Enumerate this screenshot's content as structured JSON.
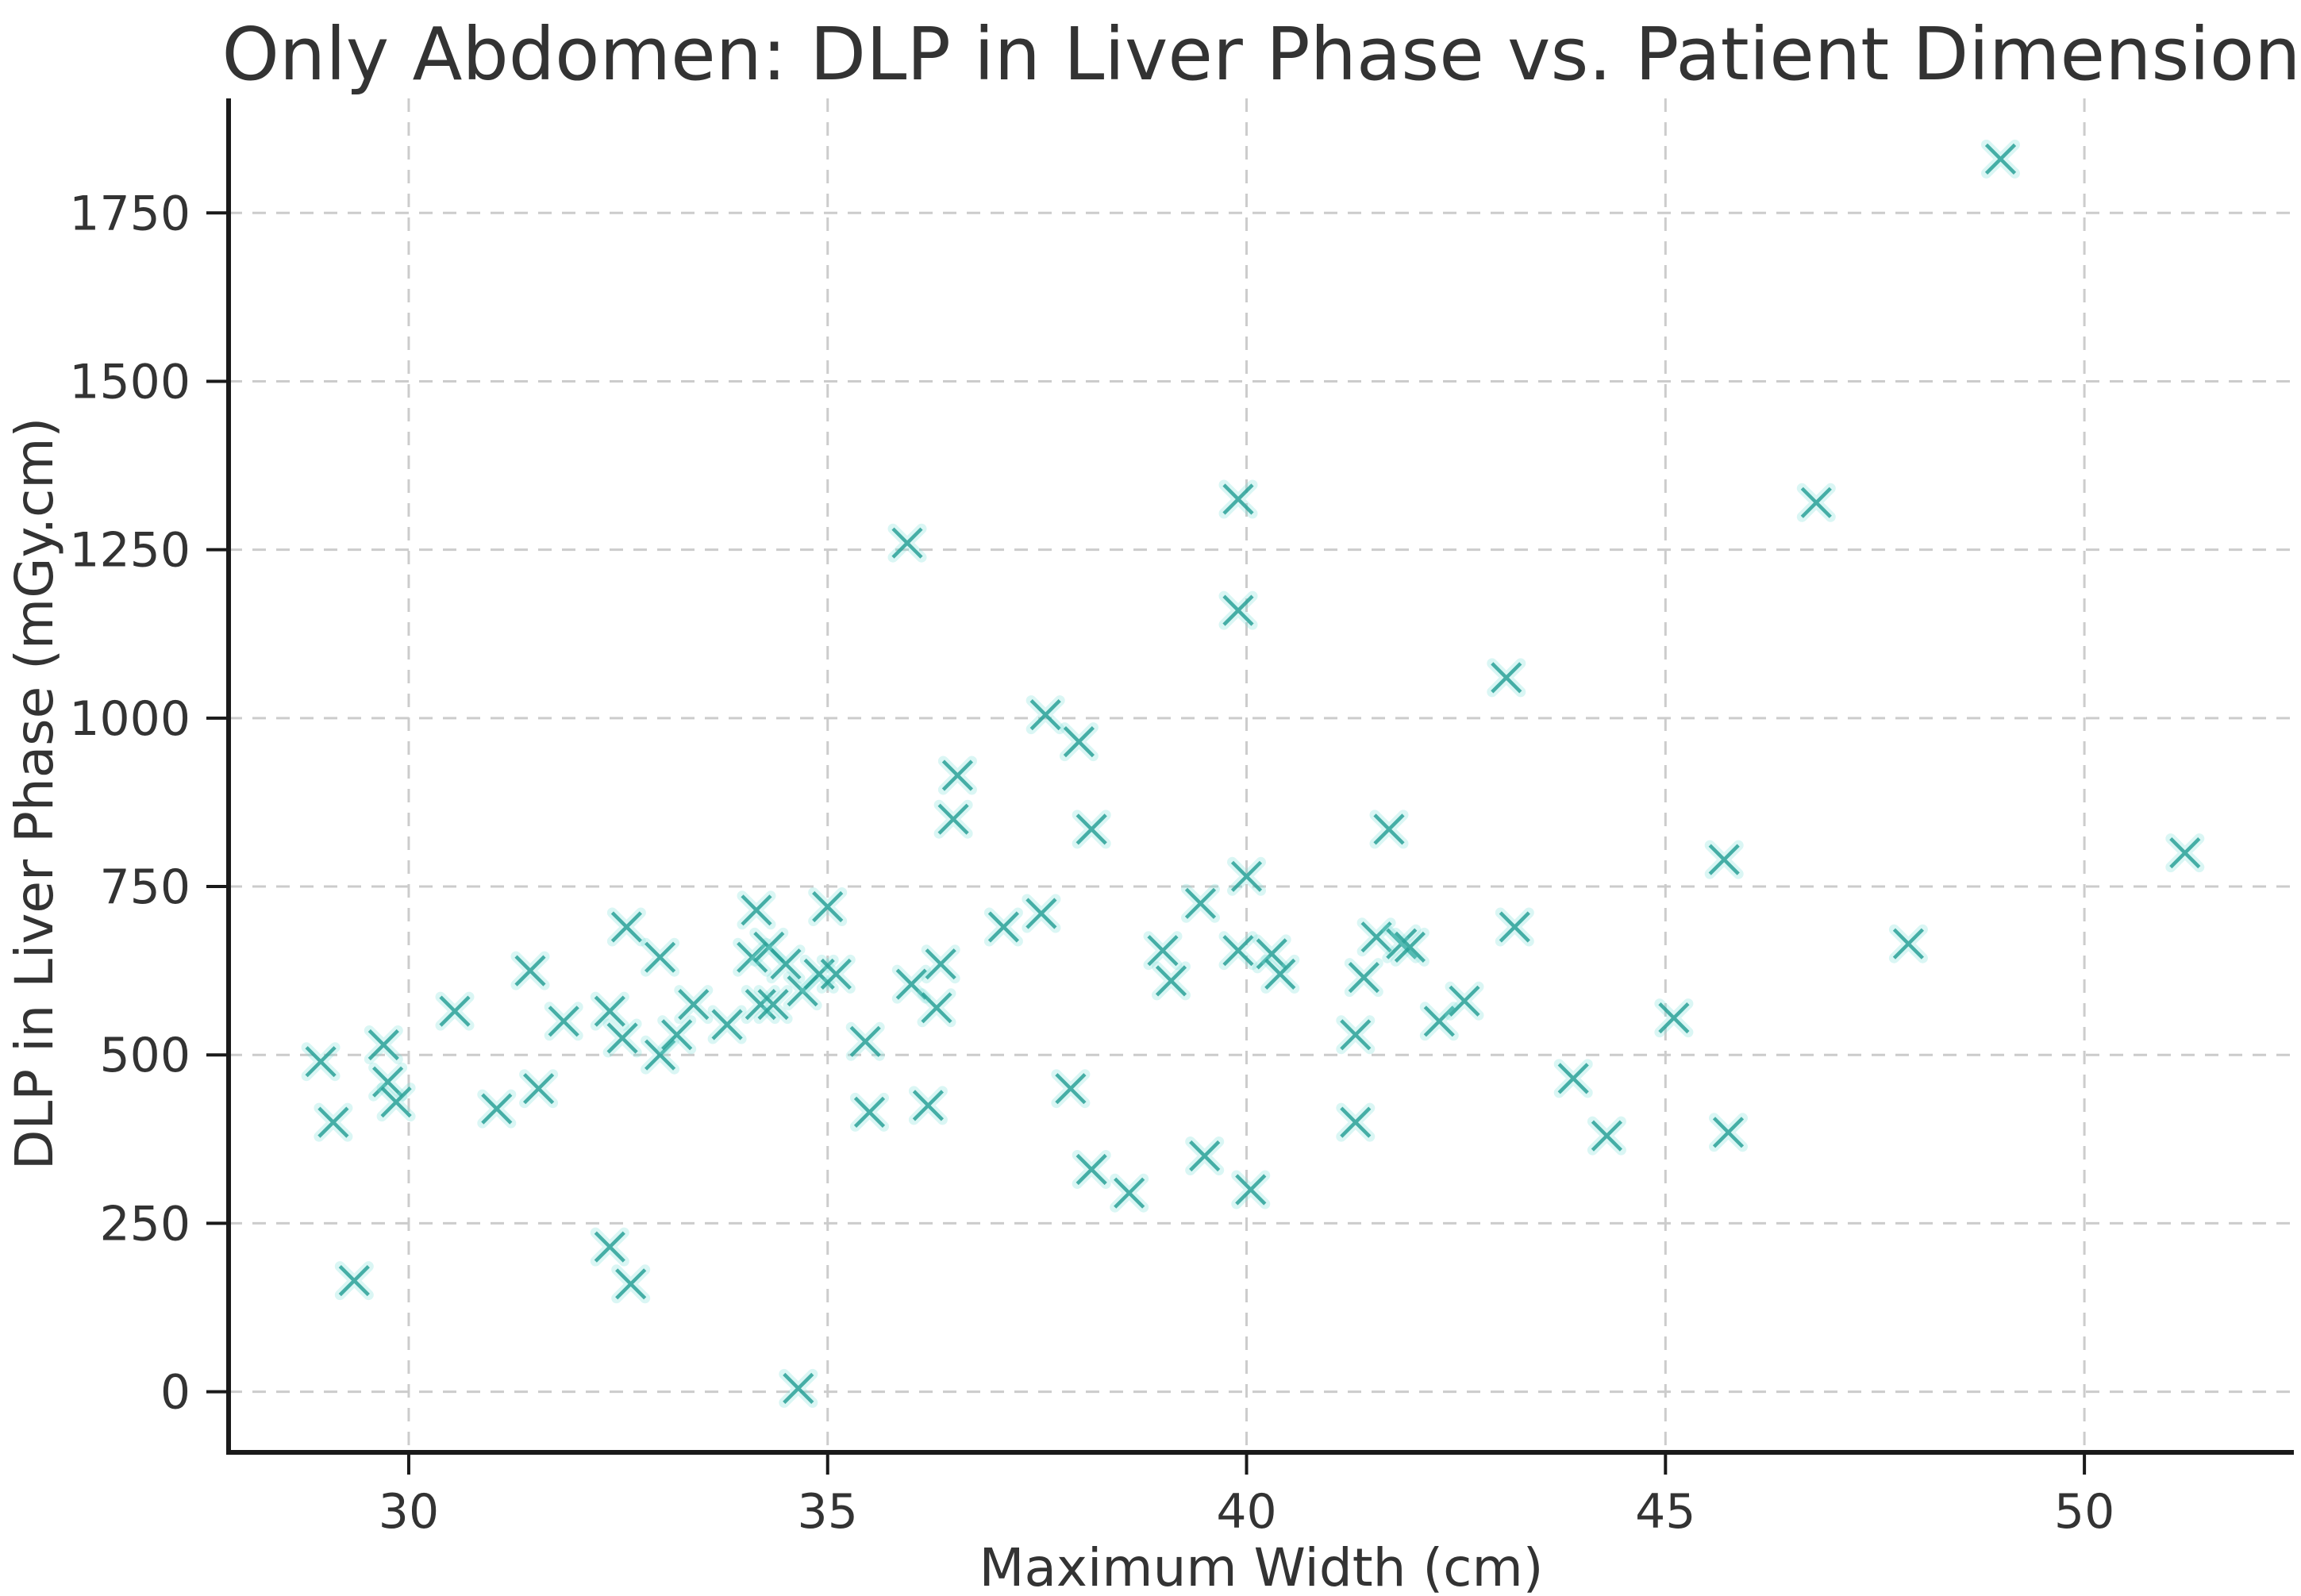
{
  "figure": {
    "background": "#ffffff",
    "text_color": "#333333",
    "grid_color": "#cccccc",
    "spine_color": "#1a1a1a"
  },
  "chart_data": {
    "type": "scatter",
    "title": "Only Abdomen: DLP in Liver Phase vs. Patient Dimension",
    "xlabel": "Maximum Width (cm)",
    "ylabel": "DLP in Liver Phase (mGy.cm)",
    "x_ticks": [
      30,
      35,
      40,
      45,
      50
    ],
    "y_ticks": [
      0,
      250,
      500,
      750,
      1000,
      1250,
      1500,
      1750
    ],
    "xlim": [
      27.85,
      52.5
    ],
    "ylim": [
      -90,
      1920
    ],
    "grid": true,
    "legend": "none",
    "marker": "x",
    "marker_color": "#2aa198",
    "marker_halo_color": "#7adfd6",
    "points": [
      [
        28.95,
        490
      ],
      [
        29.1,
        400
      ],
      [
        29.35,
        165
      ],
      [
        29.7,
        515
      ],
      [
        29.75,
        460
      ],
      [
        29.85,
        430
      ],
      [
        30.55,
        565
      ],
      [
        31.05,
        420
      ],
      [
        31.45,
        625
      ],
      [
        31.55,
        450
      ],
      [
        31.85,
        550
      ],
      [
        32.4,
        215
      ],
      [
        32.4,
        565
      ],
      [
        32.55,
        525
      ],
      [
        32.6,
        690
      ],
      [
        32.65,
        160
      ],
      [
        33.0,
        645
      ],
      [
        33.0,
        500
      ],
      [
        33.2,
        530
      ],
      [
        33.4,
        575
      ],
      [
        33.8,
        545
      ],
      [
        34.1,
        645
      ],
      [
        34.15,
        715
      ],
      [
        34.2,
        575
      ],
      [
        34.3,
        660
      ],
      [
        34.35,
        575
      ],
      [
        34.5,
        635
      ],
      [
        34.65,
        5
      ],
      [
        34.7,
        595
      ],
      [
        34.9,
        620
      ],
      [
        35.0,
        720
      ],
      [
        35.1,
        620
      ],
      [
        35.45,
        520
      ],
      [
        35.5,
        415
      ],
      [
        35.95,
        1260
      ],
      [
        36.0,
        605
      ],
      [
        36.2,
        425
      ],
      [
        36.3,
        570
      ],
      [
        36.35,
        635
      ],
      [
        36.5,
        850
      ],
      [
        36.55,
        915
      ],
      [
        37.1,
        690
      ],
      [
        37.55,
        710
      ],
      [
        37.6,
        1005
      ],
      [
        37.9,
        450
      ],
      [
        38.0,
        965
      ],
      [
        38.15,
        835
      ],
      [
        38.15,
        330
      ],
      [
        38.6,
        295
      ],
      [
        39.0,
        655
      ],
      [
        39.1,
        610
      ],
      [
        39.45,
        725
      ],
      [
        39.5,
        350
      ],
      [
        39.9,
        1325
      ],
      [
        39.9,
        1160
      ],
      [
        39.9,
        655
      ],
      [
        40.0,
        765
      ],
      [
        40.05,
        300
      ],
      [
        40.3,
        650
      ],
      [
        40.4,
        620
      ],
      [
        41.3,
        530
      ],
      [
        41.3,
        400
      ],
      [
        41.4,
        615
      ],
      [
        41.55,
        675
      ],
      [
        41.7,
        835
      ],
      [
        41.85,
        665
      ],
      [
        41.95,
        660
      ],
      [
        42.3,
        550
      ],
      [
        42.6,
        580
      ],
      [
        43.1,
        1060
      ],
      [
        43.2,
        690
      ],
      [
        43.9,
        465
      ],
      [
        44.3,
        380
      ],
      [
        45.1,
        555
      ],
      [
        45.7,
        790
      ],
      [
        45.75,
        385
      ],
      [
        46.8,
        1320
      ],
      [
        47.9,
        665
      ],
      [
        49.0,
        1830
      ],
      [
        51.2,
        800
      ]
    ]
  }
}
